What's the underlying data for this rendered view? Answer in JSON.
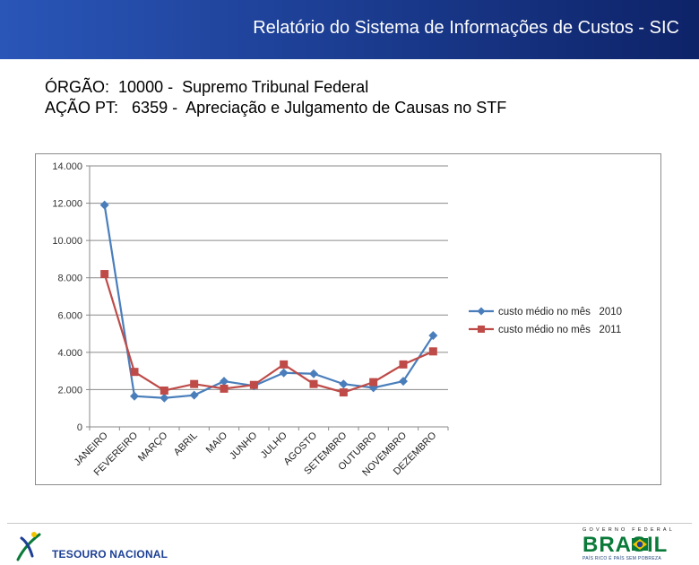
{
  "header": {
    "title": "Relatório do Sistema de Informações de Custos - SIC"
  },
  "info": {
    "orgao_label": "ÓRGÃO:",
    "orgao_value": "10000 -  Supremo Tribunal Federal",
    "acao_label": "AÇÃO PT:",
    "acao_value": "6359 -  Apreciação e Julgamento de Causas no STF"
  },
  "chart_data": {
    "type": "line",
    "title": "",
    "xlabel": "",
    "ylabel": "",
    "ylim": [
      0,
      14000
    ],
    "yticks": [
      "0",
      "2.000",
      "4.000",
      "6.000",
      "8.000",
      "10.000",
      "12.000",
      "14.000"
    ],
    "grid": true,
    "legend_position": "right",
    "categories": [
      "JANEIRO",
      "FEVEREIRO",
      "MARÇO",
      "ABRIL",
      "MAIO",
      "JUNHO",
      "JULHO",
      "AGOSTO",
      "SETEMBRO",
      "OUTUBRO",
      "NOVEMBRO",
      "DEZEMBRO"
    ],
    "series": [
      {
        "name": "custo médio no mês   2010",
        "color": "#4a7ebb",
        "marker": "diamond",
        "values": [
          11900,
          1650,
          1550,
          1700,
          2450,
          2200,
          2900,
          2850,
          2300,
          2100,
          2450,
          4900
        ]
      },
      {
        "name": "custo médio no mês   2011",
        "color": "#be4b48",
        "marker": "square",
        "values": [
          8200,
          2950,
          1950,
          2300,
          2050,
          2250,
          3350,
          2300,
          1850,
          2400,
          3350,
          4050
        ]
      }
    ]
  },
  "footer": {
    "tesouro_text": "TESOURO NACIONAL",
    "brasil_gov": "GOVERNO FEDERAL",
    "brasil_word": "BRASIL",
    "brasil_slogan": "PAÍS RICO É PAÍS SEM POBREZA",
    "colors": {
      "brand_blue": "#1d3f95",
      "brand_green": "#0a7a3a",
      "brand_yellow": "#f2c400"
    }
  }
}
